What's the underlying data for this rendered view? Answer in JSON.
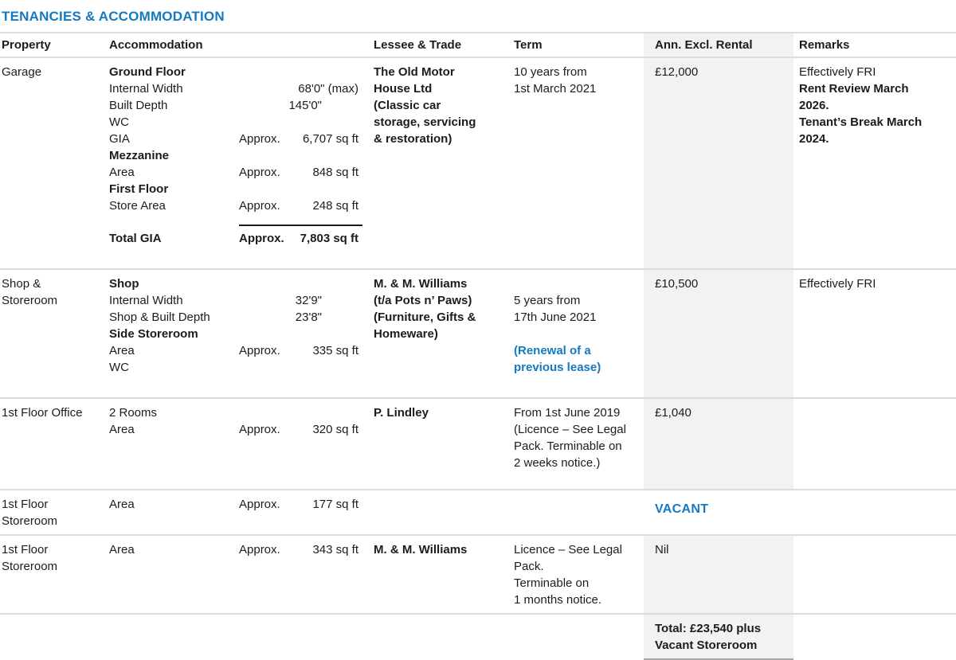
{
  "title": "TENANCIES & ACCOMMODATION",
  "colors": {
    "accent_blue": "#1579c2",
    "shaded_column": "#f2f2f2",
    "rule_dark": "#a6a6a6"
  },
  "header": {
    "property": "Property",
    "accommodation": "Accommodation",
    "lessee": "Lessee & Trade",
    "term": "Term",
    "rental": "Ann. Excl. Rental",
    "remarks": "Remarks"
  },
  "rows": [
    {
      "property": "Garage",
      "acc": [
        {
          "label": "Ground Floor"
        },
        {
          "label": "Internal Width",
          "value": "68'0\" (max)"
        },
        {
          "label": "Built Depth",
          "value": "145'0\""
        },
        {
          "label": "WC"
        },
        {
          "label": "GIA",
          "prefix": "Approx.",
          "value": "6,707 sq ft"
        },
        {
          "label": "Mezzanine"
        },
        {
          "label": "Area",
          "prefix": "Approx.",
          "value": "848 sq ft"
        },
        {
          "label": "First Floor"
        },
        {
          "label": "Store Area",
          "prefix": "Approx.",
          "value": "248 sq ft"
        },
        {
          "label": "Total GIA",
          "prefix": "Approx.",
          "value": "7,803 sq ft"
        }
      ],
      "lessee": "The Old Motor\nHouse Ltd\n(Classic car\nstorage, servicing\n& restoration)",
      "term": "10 years from\n1st March 2021",
      "rental": "£12,000",
      "remarks": "Effectively FRI",
      "remarks_bold": "Rent Review March\n2026.\nTenant’s Break March\n2024."
    },
    {
      "property": "Shop &\nStoreroom",
      "acc": [
        {
          "label": "Shop"
        },
        {
          "label": "Internal Width",
          "value": "32'9\""
        },
        {
          "label": "Shop & Built Depth",
          "value": "23'8\""
        },
        {
          "label": "Side Storeroom"
        },
        {
          "label": "Area",
          "prefix": "Approx.",
          "value": "335 sq ft"
        },
        {
          "label": "WC"
        }
      ],
      "lessee": "M. & M. Williams\n(t/a Pots n’ Paws)\n(Furniture, Gifts &\nHomeware)",
      "term": "5 years from\n17th June 2021",
      "term_highlight": "(Renewal of a\nprevious lease)",
      "rental": "£10,500",
      "remarks": "Effectively FRI"
    },
    {
      "property": "1st Floor Office",
      "acc": [
        {
          "label": "2 Rooms"
        },
        {
          "label": "Area",
          "prefix": "Approx.",
          "value": "320 sq ft"
        }
      ],
      "lessee": "P. Lindley",
      "term": "From 1st June 2019\n(Licence – See Legal\nPack. Terminable on\n2 weeks notice.)",
      "rental": "£1,040"
    },
    {
      "property": "1st Floor\nStoreroom",
      "acc": [
        {
          "label": "Area",
          "prefix": "Approx.",
          "value": "177 sq ft"
        }
      ],
      "vacant": "VACANT"
    },
    {
      "property": "1st Floor\nStoreroom",
      "acc": [
        {
          "label": "Area",
          "prefix": "Approx.",
          "value": "343 sq ft"
        }
      ],
      "lessee": "M. & M. Williams",
      "term": "Licence – See Legal\nPack.\nTerminable on\n1 months notice.",
      "rental": "Nil"
    }
  ],
  "total": "Total: £23,540 plus\nVacant Storeroom"
}
